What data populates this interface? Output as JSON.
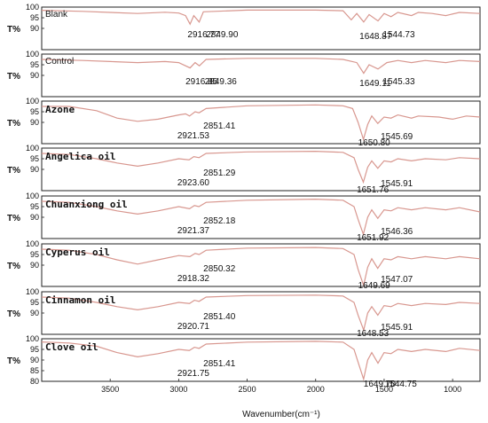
{
  "chart_data": {
    "type": "line",
    "title": "",
    "xlabel": "Wavenumber(cm⁻¹)",
    "ylabel": "T%",
    "xlim": [
      4000,
      800
    ],
    "x_ticks": [
      3500,
      3000,
      2500,
      2000,
      1500,
      1000
    ],
    "ylim": [
      80,
      100
    ],
    "y_ticks": [
      80,
      85,
      90,
      95,
      100
    ],
    "line_color": "#d8978f",
    "series": [
      {
        "name": "Blank",
        "peak_labels": [
          "2916.77",
          "2849.90",
          "1648.87",
          "1544.73"
        ],
        "points": [
          [
            4000,
            98.5
          ],
          [
            3700,
            98
          ],
          [
            3500,
            97.5
          ],
          [
            3300,
            97
          ],
          [
            3100,
            97.6
          ],
          [
            3000,
            97.2
          ],
          [
            2950,
            96
          ],
          [
            2917,
            92
          ],
          [
            2890,
            96
          ],
          [
            2850,
            93
          ],
          [
            2820,
            97.8
          ],
          [
            2500,
            98.6
          ],
          [
            2000,
            98.6
          ],
          [
            1800,
            98.3
          ],
          [
            1740,
            94
          ],
          [
            1700,
            97
          ],
          [
            1649,
            93
          ],
          [
            1610,
            96.5
          ],
          [
            1545,
            93.5
          ],
          [
            1500,
            97
          ],
          [
            1450,
            95.5
          ],
          [
            1400,
            97.5
          ],
          [
            1300,
            96
          ],
          [
            1250,
            97.5
          ],
          [
            1150,
            97
          ],
          [
            1050,
            96
          ],
          [
            950,
            97.5
          ],
          [
            800,
            97
          ]
        ]
      },
      {
        "name": "Control",
        "peak_labels": [
          "2916.85",
          "2849.36",
          "1649.11",
          "1545.33"
        ],
        "points": [
          [
            4000,
            97.5
          ],
          [
            3700,
            97
          ],
          [
            3500,
            96.5
          ],
          [
            3300,
            96
          ],
          [
            3100,
            96.5
          ],
          [
            3000,
            96
          ],
          [
            2917,
            93.5
          ],
          [
            2880,
            96
          ],
          [
            2849,
            94.5
          ],
          [
            2800,
            97.5
          ],
          [
            2500,
            98
          ],
          [
            2000,
            98
          ],
          [
            1800,
            97.5
          ],
          [
            1700,
            96
          ],
          [
            1649,
            91
          ],
          [
            1610,
            95
          ],
          [
            1545,
            93
          ],
          [
            1480,
            96
          ],
          [
            1400,
            97
          ],
          [
            1300,
            96
          ],
          [
            1200,
            97
          ],
          [
            1050,
            96
          ],
          [
            950,
            97
          ],
          [
            800,
            96.5
          ]
        ]
      },
      {
        "name": "Azone",
        "peak_labels": [
          "2921.53",
          "2851.41",
          "1650.80",
          "1545.69"
        ],
        "points": [
          [
            4000,
            97.5
          ],
          [
            3800,
            97.5
          ],
          [
            3600,
            95.5
          ],
          [
            3450,
            92
          ],
          [
            3300,
            90.5
          ],
          [
            3150,
            91.5
          ],
          [
            3000,
            93.5
          ],
          [
            2950,
            94
          ],
          [
            2921,
            93
          ],
          [
            2880,
            95
          ],
          [
            2851,
            94.5
          ],
          [
            2800,
            96.5
          ],
          [
            2500,
            97.8
          ],
          [
            2000,
            98.2
          ],
          [
            1800,
            97.8
          ],
          [
            1730,
            96.5
          ],
          [
            1690,
            90
          ],
          [
            1651,
            82
          ],
          [
            1620,
            89
          ],
          [
            1590,
            93
          ],
          [
            1546,
            89.5
          ],
          [
            1500,
            92.5
          ],
          [
            1450,
            92
          ],
          [
            1400,
            93.5
          ],
          [
            1300,
            92
          ],
          [
            1250,
            93
          ],
          [
            1100,
            92.5
          ],
          [
            1000,
            91.5
          ],
          [
            900,
            93
          ],
          [
            800,
            92.5
          ]
        ]
      },
      {
        "name": "Angelica oil",
        "peak_labels": [
          "2923.60",
          "2851.29",
          "1651.76",
          "1545.91"
        ],
        "points": [
          [
            4000,
            97.5
          ],
          [
            3800,
            97
          ],
          [
            3600,
            95
          ],
          [
            3450,
            93
          ],
          [
            3300,
            91.5
          ],
          [
            3150,
            93
          ],
          [
            3000,
            95
          ],
          [
            2924,
            94.5
          ],
          [
            2890,
            96
          ],
          [
            2851,
            95.5
          ],
          [
            2800,
            97.5
          ],
          [
            2500,
            98.2
          ],
          [
            2000,
            98.5
          ],
          [
            1800,
            98
          ],
          [
            1720,
            95.5
          ],
          [
            1690,
            90
          ],
          [
            1652,
            84
          ],
          [
            1620,
            91
          ],
          [
            1590,
            94
          ],
          [
            1546,
            90.5
          ],
          [
            1500,
            94
          ],
          [
            1450,
            93.5
          ],
          [
            1400,
            95
          ],
          [
            1300,
            94
          ],
          [
            1200,
            95
          ],
          [
            1050,
            94.5
          ],
          [
            950,
            95.5
          ],
          [
            800,
            95
          ]
        ]
      },
      {
        "name": "Chuanxiong oil",
        "peak_labels": [
          "2921.37",
          "2852.18",
          "1651.92",
          "1546.36"
        ],
        "points": [
          [
            4000,
            97.5
          ],
          [
            3800,
            97
          ],
          [
            3600,
            95
          ],
          [
            3450,
            93
          ],
          [
            3300,
            91.5
          ],
          [
            3150,
            93
          ],
          [
            3000,
            95
          ],
          [
            2921,
            94
          ],
          [
            2885,
            95.5
          ],
          [
            2852,
            95
          ],
          [
            2800,
            97
          ],
          [
            2500,
            98
          ],
          [
            2000,
            98.5
          ],
          [
            1800,
            98
          ],
          [
            1720,
            95
          ],
          [
            1690,
            89
          ],
          [
            1652,
            82
          ],
          [
            1620,
            90
          ],
          [
            1590,
            93.5
          ],
          [
            1546,
            89.5
          ],
          [
            1500,
            93.5
          ],
          [
            1450,
            93
          ],
          [
            1400,
            94.5
          ],
          [
            1300,
            93.5
          ],
          [
            1200,
            94.5
          ],
          [
            1050,
            93.5
          ],
          [
            950,
            94.5
          ],
          [
            800,
            92.5
          ]
        ]
      },
      {
        "name": "Cyperus oil",
        "peak_labels": [
          "2918.32",
          "2850.32",
          "1649.69",
          "1547.07"
        ],
        "points": [
          [
            4000,
            97.5
          ],
          [
            3800,
            97
          ],
          [
            3600,
            95
          ],
          [
            3450,
            92.5
          ],
          [
            3300,
            90.5
          ],
          [
            3150,
            92.5
          ],
          [
            3000,
            94.5
          ],
          [
            2918,
            94
          ],
          [
            2880,
            95.5
          ],
          [
            2850,
            95
          ],
          [
            2800,
            97
          ],
          [
            2500,
            98
          ],
          [
            2000,
            98.3
          ],
          [
            1800,
            97.8
          ],
          [
            1720,
            95
          ],
          [
            1690,
            88
          ],
          [
            1650,
            80.5
          ],
          [
            1620,
            89
          ],
          [
            1590,
            93
          ],
          [
            1547,
            88.5
          ],
          [
            1500,
            93
          ],
          [
            1450,
            92.5
          ],
          [
            1400,
            94
          ],
          [
            1300,
            93
          ],
          [
            1200,
            94
          ],
          [
            1050,
            93
          ],
          [
            950,
            94
          ],
          [
            800,
            93
          ]
        ]
      },
      {
        "name": "Cinnamon oil",
        "peak_labels": [
          "2920.71",
          "2851.40",
          "1648.53",
          "1545.91"
        ],
        "points": [
          [
            4000,
            97.5
          ],
          [
            3800,
            97
          ],
          [
            3600,
            95
          ],
          [
            3450,
            93
          ],
          [
            3300,
            91.5
          ],
          [
            3150,
            93
          ],
          [
            3000,
            95
          ],
          [
            2921,
            94.5
          ],
          [
            2885,
            96
          ],
          [
            2851,
            95.5
          ],
          [
            2800,
            97.5
          ],
          [
            2500,
            98.2
          ],
          [
            2000,
            98.4
          ],
          [
            1800,
            98
          ],
          [
            1720,
            95
          ],
          [
            1690,
            89
          ],
          [
            1649,
            82
          ],
          [
            1620,
            90
          ],
          [
            1590,
            93
          ],
          [
            1546,
            89
          ],
          [
            1500,
            93.5
          ],
          [
            1450,
            93
          ],
          [
            1400,
            94.5
          ],
          [
            1300,
            93.5
          ],
          [
            1200,
            94.5
          ],
          [
            1050,
            94
          ],
          [
            950,
            95
          ],
          [
            800,
            94.5
          ]
        ]
      },
      {
        "name": "Clove oil",
        "peak_labels": [
          "2921.75",
          "2851.41",
          "1649.70",
          "1544.75"
        ],
        "points": [
          [
            4000,
            98.5
          ],
          [
            3800,
            98
          ],
          [
            3600,
            96.5
          ],
          [
            3450,
            93.5
          ],
          [
            3300,
            91.5
          ],
          [
            3150,
            93
          ],
          [
            3000,
            95
          ],
          [
            2922,
            94.5
          ],
          [
            2885,
            96
          ],
          [
            2851,
            95.5
          ],
          [
            2800,
            97.5
          ],
          [
            2500,
            98.4
          ],
          [
            2000,
            98.8
          ],
          [
            1800,
            98.4
          ],
          [
            1720,
            95
          ],
          [
            1690,
            89
          ],
          [
            1650,
            81
          ],
          [
            1620,
            90
          ],
          [
            1590,
            93.5
          ],
          [
            1545,
            88.5
          ],
          [
            1500,
            93.5
          ],
          [
            1450,
            93
          ],
          [
            1400,
            95
          ],
          [
            1300,
            94
          ],
          [
            1200,
            95
          ],
          [
            1050,
            94
          ],
          [
            950,
            95.5
          ],
          [
            800,
            94.5
          ]
        ]
      }
    ]
  }
}
